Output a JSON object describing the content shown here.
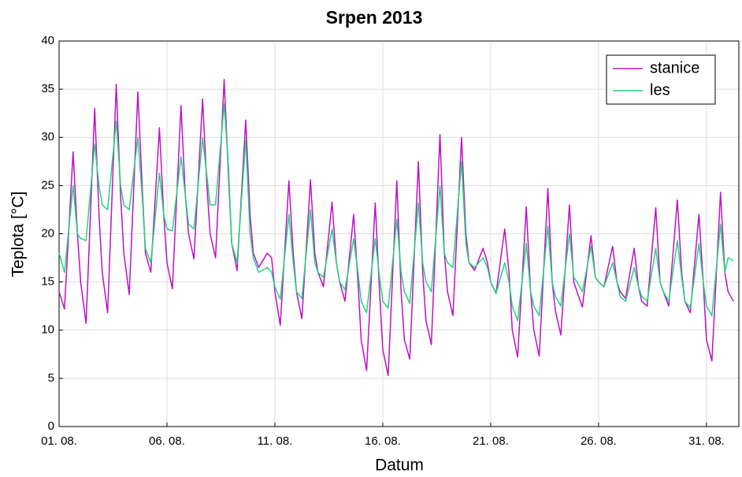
{
  "chart_data": {
    "type": "line",
    "title": "Srpen 2013",
    "x_label": "Datum",
    "y_label": "Teplota [°C]",
    "x": [
      0,
      0.25,
      0.65,
      0.85,
      1,
      1.25,
      1.65,
      1.85,
      2,
      2.25,
      2.65,
      2.85,
      3,
      3.25,
      3.65,
      3.85,
      4,
      4.25,
      4.65,
      4.85,
      5,
      5.25,
      5.65,
      5.85,
      6,
      6.25,
      6.65,
      6.85,
      7,
      7.25,
      7.65,
      7.85,
      8,
      8.25,
      8.65,
      8.85,
      9,
      9.25,
      9.65,
      9.85,
      10,
      10.25,
      10.65,
      10.85,
      11,
      11.25,
      11.65,
      11.85,
      12,
      12.25,
      12.65,
      12.85,
      13,
      13.25,
      13.65,
      13.85,
      14,
      14.25,
      14.65,
      14.85,
      15,
      15.25,
      15.65,
      15.85,
      16,
      16.25,
      16.65,
      16.85,
      17,
      17.25,
      17.65,
      17.85,
      18,
      18.25,
      18.65,
      18.85,
      19,
      19.25,
      19.65,
      19.85,
      20,
      20.25,
      20.65,
      20.85,
      21,
      21.25,
      21.65,
      21.85,
      22,
      22.25,
      22.65,
      22.85,
      23,
      23.25,
      23.65,
      23.85,
      24,
      24.25,
      24.65,
      24.85,
      25,
      25.25,
      25.65,
      25.85,
      26,
      26.25,
      26.65,
      26.85,
      27,
      27.25,
      27.65,
      27.85,
      28,
      28.25,
      28.65,
      28.85,
      29,
      29.25,
      29.65,
      29.85,
      30,
      30.25,
      30.65,
      30.85,
      31,
      31.25
    ],
    "series": [
      {
        "name": "stanice",
        "color": "#c010c8",
        "values": [
          14,
          12.2,
          28.5,
          20,
          15,
          10.7,
          33,
          22,
          16,
          11.8,
          35.5,
          24,
          18,
          13.7,
          34.7,
          25,
          18,
          16,
          31,
          22,
          17,
          14.3,
          33.3,
          24,
          20,
          17.4,
          34,
          25,
          20,
          17.5,
          36,
          26,
          19,
          16.2,
          31.8,
          22,
          18,
          16.5,
          18,
          17.5,
          14,
          10.5,
          25.5,
          18,
          14,
          11.2,
          25.6,
          18,
          16,
          14.5,
          23.3,
          17,
          15,
          13,
          22,
          15,
          9,
          5.8,
          23.2,
          14,
          8,
          5.3,
          25.5,
          14,
          9,
          7,
          27.5,
          16,
          11,
          8.5,
          30.3,
          18,
          14,
          11.5,
          30,
          20,
          17,
          16.2,
          18.5,
          17,
          15,
          13.8,
          20.5,
          16,
          10,
          7.2,
          22.8,
          14,
          10,
          7.3,
          24.7,
          15,
          12,
          9.5,
          23,
          15,
          14,
          12.4,
          19.8,
          15.5,
          15,
          14.5,
          18.7,
          15,
          14,
          13.3,
          18.5,
          14.5,
          13,
          12.5,
          22.7,
          15,
          14,
          12.5,
          23.5,
          16,
          13,
          11.8,
          22,
          15,
          9,
          6.8,
          24.3,
          16,
          14,
          13
        ]
      },
      {
        "name": "les",
        "color": "#22d47a",
        "values": [
          18,
          16,
          25,
          20,
          19.5,
          19.3,
          29.3,
          25,
          23,
          22.5,
          31.7,
          25,
          23,
          22.5,
          30,
          24,
          18.5,
          17,
          26.3,
          22,
          20.5,
          20.3,
          28,
          24,
          21,
          20.5,
          30,
          26,
          23,
          23,
          33.5,
          27,
          19,
          17,
          29.8,
          20,
          17.5,
          16,
          16.5,
          16,
          14.5,
          13.2,
          22,
          17,
          14,
          13.3,
          22.5,
          17,
          16,
          15.5,
          20.5,
          17,
          15,
          14.2,
          19.5,
          16,
          13,
          11.8,
          19.5,
          15.5,
          13,
          12.3,
          21.5,
          16,
          14,
          12.8,
          23.2,
          17,
          15,
          14,
          25,
          18,
          17,
          16.5,
          27.5,
          19,
          17,
          16.5,
          17.5,
          16.5,
          15,
          13.8,
          17,
          15,
          12.5,
          11,
          19,
          14,
          12.5,
          11.5,
          20.8,
          15,
          13.5,
          12.5,
          20,
          15.5,
          15,
          14,
          18.7,
          15.5,
          15,
          14.5,
          17,
          15,
          13.5,
          13,
          16.5,
          14.5,
          13.5,
          13,
          18.5,
          15,
          14,
          13,
          19.3,
          15.5,
          13,
          12.3,
          19,
          15,
          12.5,
          11.5,
          21,
          16,
          17.5,
          17.2
        ]
      }
    ],
    "xlim": [
      0,
      31.5
    ],
    "xticks": [
      {
        "value": 0,
        "label": "01. 08."
      },
      {
        "value": 5,
        "label": "06. 08."
      },
      {
        "value": 10,
        "label": "11. 08."
      },
      {
        "value": 15,
        "label": "16. 08."
      },
      {
        "value": 20,
        "label": "21. 08."
      },
      {
        "value": 25,
        "label": "26. 08."
      },
      {
        "value": 30,
        "label": "31. 08."
      }
    ],
    "ylim": [
      0,
      40
    ],
    "yticks": [
      0,
      5,
      10,
      15,
      20,
      25,
      30,
      35,
      40
    ],
    "grid": true,
    "legend": "upper-right"
  }
}
